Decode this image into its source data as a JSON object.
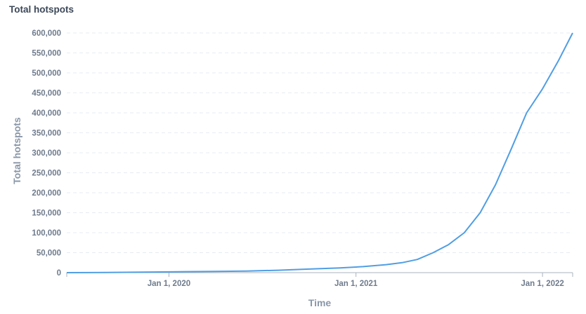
{
  "card": {
    "title": "Total hotspots"
  },
  "chart_data": {
    "type": "line",
    "title": "Total hotspots",
    "xlabel": "Time",
    "ylabel": "Total hotspots",
    "ylim": [
      0,
      600000
    ],
    "xlim": [
      "2019-06-15",
      "2022-03-01"
    ],
    "y_ticks": [
      0,
      50000,
      100000,
      150000,
      200000,
      250000,
      300000,
      350000,
      400000,
      450000,
      500000,
      550000,
      600000
    ],
    "y_tick_labels": [
      "0",
      "50,000",
      "100,000",
      "150,000",
      "200,000",
      "250,000",
      "300,000",
      "350,000",
      "400,000",
      "450,000",
      "500,000",
      "550,000",
      "600,000"
    ],
    "x_ticks": [
      "2020-01-01",
      "2021-01-01",
      "2022-01-01"
    ],
    "x_tick_labels": [
      "Jan 1, 2020",
      "Jan 1, 2021",
      "Jan 1, 2022"
    ],
    "grid": "horizontal dashed",
    "color": "#509ee3",
    "series": [
      {
        "x": [
          "2019-06-15",
          "2019-09-01",
          "2019-12-01",
          "2020-02-01",
          "2020-04-01",
          "2020-06-01",
          "2020-08-01",
          "2020-10-01",
          "2020-12-01",
          "2021-01-15",
          "2021-03-01",
          "2021-04-01",
          "2021-05-01",
          "2021-06-01",
          "2021-07-01",
          "2021-08-01",
          "2021-09-01",
          "2021-10-01",
          "2021-11-01",
          "2021-12-01",
          "2022-01-01",
          "2022-02-01",
          "2022-03-01"
        ],
        "y": [
          0,
          500,
          1500,
          2500,
          3000,
          4000,
          6000,
          9000,
          12000,
          15000,
          20000,
          25000,
          33000,
          50000,
          70000,
          100000,
          150000,
          220000,
          310000,
          400000,
          460000,
          530000,
          600000
        ]
      }
    ]
  }
}
